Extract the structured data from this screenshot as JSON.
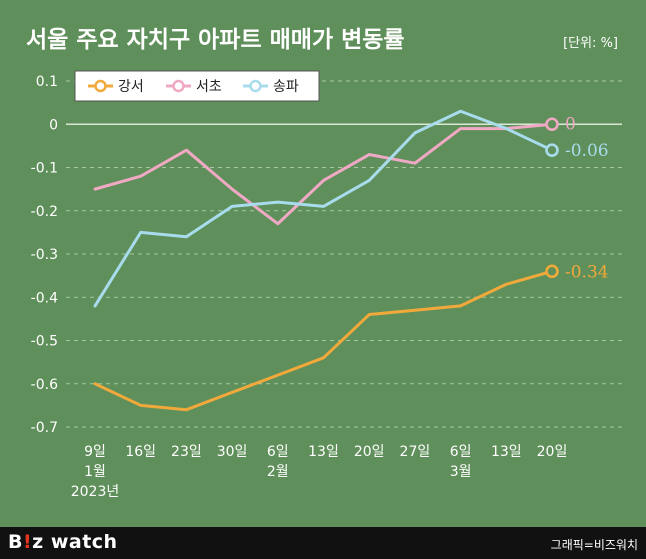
{
  "chart_data": {
    "type": "line",
    "title": "서울 주요 자치구 아파트 매매가 변동률",
    "unit_label": "[단위: %]",
    "ylim": [
      -0.7,
      0.1
    ],
    "yticks": [
      {
        "value": 0.1,
        "label": "0.1"
      },
      {
        "value": 0,
        "label": "0"
      },
      {
        "value": -0.1,
        "label": "-0.1"
      },
      {
        "value": -0.2,
        "label": "-0.2"
      },
      {
        "value": -0.3,
        "label": "-0.3"
      },
      {
        "value": -0.4,
        "label": "-0.4"
      },
      {
        "value": -0.5,
        "label": "-0.5"
      },
      {
        "value": -0.6,
        "label": "-0.6"
      },
      {
        "value": -0.7,
        "label": "-0.7"
      }
    ],
    "categories": [
      "9일",
      "16일",
      "23일",
      "30일",
      "6일",
      "13일",
      "20일",
      "27일",
      "6일",
      "13일",
      "20일"
    ],
    "category_sublabels": [
      [
        "1월",
        "2023년"
      ],
      [],
      [],
      [],
      [
        "2월"
      ],
      [],
      [],
      [],
      [
        "3월"
      ],
      [],
      []
    ],
    "grid": true,
    "legend_position": "top-left",
    "series": [
      {
        "name": "강서",
        "color": "#f2a93b",
        "values": [
          -0.6,
          -0.65,
          -0.66,
          -0.62,
          -0.58,
          -0.54,
          -0.44,
          -0.43,
          -0.42,
          -0.37,
          -0.34
        ],
        "end_label": "-0.34"
      },
      {
        "name": "서초",
        "color": "#f0a9c4",
        "values": [
          -0.15,
          -0.12,
          -0.06,
          -0.15,
          -0.23,
          -0.13,
          -0.07,
          -0.09,
          -0.01,
          -0.01,
          0.0
        ],
        "end_label": "0"
      },
      {
        "name": "송파",
        "color": "#a8dcec",
        "values": [
          -0.42,
          -0.25,
          -0.26,
          -0.19,
          -0.18,
          -0.19,
          -0.13,
          -0.02,
          0.03,
          -0.01,
          -0.06
        ],
        "end_label": "-0.06"
      }
    ]
  },
  "footer": {
    "brand_b": "B",
    "brand_excl": "!",
    "brand_rest": "z watch",
    "credit": "그래픽=비즈워치"
  }
}
